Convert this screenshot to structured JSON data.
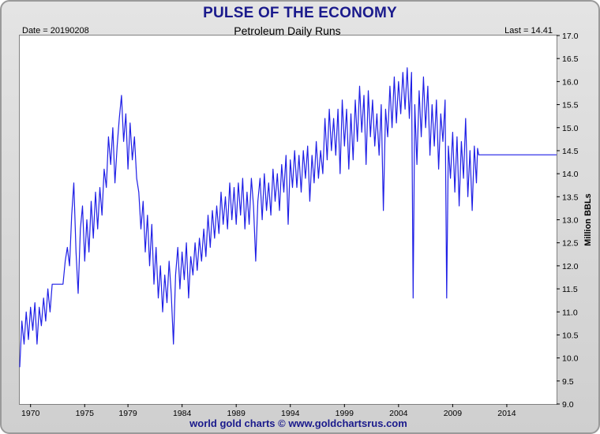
{
  "header": {
    "banner": "PULSE OF THE ECONOMY",
    "date_label": "Date = 20190208",
    "last_label": "Last = 14.41",
    "footer": "world gold charts © www.goldchartsrus.com"
  },
  "colors": {
    "line": "#1f1fe6",
    "banner_text": "#1a1a8c"
  },
  "chart_data": {
    "type": "line",
    "title": "Petroleum Daily Runs",
    "xlabel": "",
    "ylabel": "Million BBLs",
    "xlim": [
      1969.0,
      2018.6
    ],
    "ylim": [
      9.0,
      17.0
    ],
    "x_ticks": [
      1970,
      1975,
      1979,
      1984,
      1989,
      1994,
      1999,
      2004,
      2009,
      2014
    ],
    "y_ticks": [
      "9.0",
      "9.5",
      "10.0",
      "10.5",
      "11.0",
      "11.5",
      "12.0",
      "12.5",
      "13.0",
      "13.5",
      "14.0",
      "14.5",
      "15.0",
      "15.5",
      "16.0",
      "16.5",
      "17.0"
    ],
    "grid": false,
    "series": [
      {
        "name": "Petroleum Daily Runs",
        "points": [
          [
            1969.0,
            9.8
          ],
          [
            1969.2,
            10.8
          ],
          [
            1969.4,
            10.3
          ],
          [
            1969.6,
            11.0
          ],
          [
            1969.8,
            10.4
          ],
          [
            1970.0,
            11.1
          ],
          [
            1970.2,
            10.6
          ],
          [
            1970.4,
            11.2
          ],
          [
            1970.6,
            10.3
          ],
          [
            1970.8,
            11.1
          ],
          [
            1971.0,
            10.7
          ],
          [
            1971.2,
            11.3
          ],
          [
            1971.4,
            10.8
          ],
          [
            1971.6,
            11.5
          ],
          [
            1971.8,
            11.0
          ],
          [
            1972.0,
            11.6
          ],
          [
            1972.3,
            11.6
          ],
          [
            1972.6,
            11.6
          ],
          [
            1973.0,
            11.6
          ],
          [
            1973.2,
            12.1
          ],
          [
            1973.4,
            12.4
          ],
          [
            1973.6,
            12.0
          ],
          [
            1973.8,
            13.1
          ],
          [
            1974.0,
            13.8
          ],
          [
            1974.2,
            12.3
          ],
          [
            1974.4,
            11.4
          ],
          [
            1974.6,
            12.8
          ],
          [
            1974.8,
            13.3
          ],
          [
            1975.0,
            12.1
          ],
          [
            1975.2,
            13.0
          ],
          [
            1975.4,
            12.3
          ],
          [
            1975.6,
            13.4
          ],
          [
            1975.8,
            12.6
          ],
          [
            1976.0,
            13.6
          ],
          [
            1976.2,
            12.8
          ],
          [
            1976.4,
            13.7
          ],
          [
            1976.6,
            13.1
          ],
          [
            1976.8,
            14.1
          ],
          [
            1977.0,
            13.7
          ],
          [
            1977.2,
            14.8
          ],
          [
            1977.4,
            14.2
          ],
          [
            1977.6,
            15.0
          ],
          [
            1977.8,
            13.8
          ],
          [
            1978.0,
            14.6
          ],
          [
            1978.2,
            15.2
          ],
          [
            1978.4,
            15.7
          ],
          [
            1978.6,
            14.7
          ],
          [
            1978.8,
            15.3
          ],
          [
            1979.0,
            14.1
          ],
          [
            1979.2,
            15.1
          ],
          [
            1979.4,
            14.3
          ],
          [
            1979.6,
            14.8
          ],
          [
            1979.8,
            13.9
          ],
          [
            1980.0,
            13.6
          ],
          [
            1980.2,
            12.8
          ],
          [
            1980.4,
            13.4
          ],
          [
            1980.6,
            12.3
          ],
          [
            1980.8,
            13.1
          ],
          [
            1981.0,
            12.0
          ],
          [
            1981.2,
            12.9
          ],
          [
            1981.4,
            11.6
          ],
          [
            1981.6,
            12.4
          ],
          [
            1981.8,
            11.3
          ],
          [
            1982.0,
            12.0
          ],
          [
            1982.2,
            11.0
          ],
          [
            1982.4,
            11.8
          ],
          [
            1982.6,
            11.2
          ],
          [
            1982.8,
            12.1
          ],
          [
            1983.0,
            11.4
          ],
          [
            1983.2,
            10.3
          ],
          [
            1983.4,
            11.8
          ],
          [
            1983.6,
            12.4
          ],
          [
            1983.8,
            11.5
          ],
          [
            1984.0,
            12.3
          ],
          [
            1984.2,
            11.7
          ],
          [
            1984.4,
            12.5
          ],
          [
            1984.6,
            11.3
          ],
          [
            1984.8,
            12.2
          ],
          [
            1985.0,
            11.8
          ],
          [
            1985.2,
            12.5
          ],
          [
            1985.4,
            11.9
          ],
          [
            1985.6,
            12.6
          ],
          [
            1985.8,
            12.1
          ],
          [
            1986.0,
            12.8
          ],
          [
            1986.2,
            12.2
          ],
          [
            1986.4,
            13.1
          ],
          [
            1986.6,
            12.4
          ],
          [
            1986.8,
            13.2
          ],
          [
            1987.0,
            12.6
          ],
          [
            1987.2,
            13.3
          ],
          [
            1987.4,
            12.7
          ],
          [
            1987.6,
            13.6
          ],
          [
            1987.8,
            12.9
          ],
          [
            1988.0,
            13.5
          ],
          [
            1988.2,
            12.8
          ],
          [
            1988.4,
            13.8
          ],
          [
            1988.6,
            13.0
          ],
          [
            1988.8,
            13.7
          ],
          [
            1989.0,
            12.9
          ],
          [
            1989.2,
            13.8
          ],
          [
            1989.4,
            13.1
          ],
          [
            1989.6,
            13.9
          ],
          [
            1989.8,
            12.8
          ],
          [
            1990.0,
            13.6
          ],
          [
            1990.2,
            12.9
          ],
          [
            1990.4,
            13.9
          ],
          [
            1990.6,
            13.3
          ],
          [
            1990.8,
            12.1
          ],
          [
            1991.0,
            13.4
          ],
          [
            1991.2,
            13.9
          ],
          [
            1991.4,
            13.0
          ],
          [
            1991.6,
            14.0
          ],
          [
            1991.8,
            13.2
          ],
          [
            1992.0,
            13.8
          ],
          [
            1992.2,
            13.1
          ],
          [
            1992.4,
            14.1
          ],
          [
            1992.6,
            13.4
          ],
          [
            1992.8,
            14.0
          ],
          [
            1993.0,
            13.2
          ],
          [
            1993.2,
            14.2
          ],
          [
            1993.4,
            13.6
          ],
          [
            1993.6,
            14.4
          ],
          [
            1993.8,
            12.9
          ],
          [
            1994.0,
            14.3
          ],
          [
            1994.2,
            13.7
          ],
          [
            1994.4,
            14.5
          ],
          [
            1994.6,
            13.7
          ],
          [
            1994.8,
            14.4
          ],
          [
            1995.0,
            13.6
          ],
          [
            1995.2,
            14.5
          ],
          [
            1995.4,
            13.9
          ],
          [
            1995.6,
            14.6
          ],
          [
            1995.8,
            13.4
          ],
          [
            1996.0,
            14.4
          ],
          [
            1996.2,
            13.8
          ],
          [
            1996.4,
            14.7
          ],
          [
            1996.6,
            13.9
          ],
          [
            1996.8,
            14.5
          ],
          [
            1997.0,
            14.0
          ],
          [
            1997.2,
            15.2
          ],
          [
            1997.4,
            14.3
          ],
          [
            1997.6,
            15.4
          ],
          [
            1997.8,
            14.5
          ],
          [
            1998.0,
            15.2
          ],
          [
            1998.2,
            14.4
          ],
          [
            1998.4,
            15.4
          ],
          [
            1998.6,
            14.0
          ],
          [
            1998.8,
            15.6
          ],
          [
            1999.0,
            14.6
          ],
          [
            1999.2,
            15.4
          ],
          [
            1999.4,
            14.1
          ],
          [
            1999.6,
            15.3
          ],
          [
            1999.8,
            14.3
          ],
          [
            2000.0,
            15.6
          ],
          [
            2000.2,
            14.7
          ],
          [
            2000.4,
            15.9
          ],
          [
            2000.6,
            14.9
          ],
          [
            2000.8,
            15.7
          ],
          [
            2001.0,
            14.2
          ],
          [
            2001.2,
            15.8
          ],
          [
            2001.4,
            14.8
          ],
          [
            2001.6,
            15.6
          ],
          [
            2001.8,
            14.6
          ],
          [
            2002.0,
            15.3
          ],
          [
            2002.2,
            14.4
          ],
          [
            2002.4,
            15.5
          ],
          [
            2002.6,
            13.2
          ],
          [
            2002.8,
            15.4
          ],
          [
            2003.0,
            14.8
          ],
          [
            2003.2,
            15.9
          ],
          [
            2003.4,
            15.0
          ],
          [
            2003.6,
            16.1
          ],
          [
            2003.8,
            15.1
          ],
          [
            2004.0,
            16.0
          ],
          [
            2004.2,
            15.3
          ],
          [
            2004.4,
            16.2
          ],
          [
            2004.6,
            15.4
          ],
          [
            2004.8,
            16.3
          ],
          [
            2005.0,
            15.2
          ],
          [
            2005.2,
            16.2
          ],
          [
            2005.35,
            11.3
          ],
          [
            2005.5,
            15.5
          ],
          [
            2005.7,
            14.2
          ],
          [
            2005.9,
            15.8
          ],
          [
            2006.1,
            14.8
          ],
          [
            2006.3,
            16.1
          ],
          [
            2006.5,
            15.0
          ],
          [
            2006.7,
            15.9
          ],
          [
            2006.9,
            14.4
          ],
          [
            2007.1,
            15.5
          ],
          [
            2007.3,
            14.6
          ],
          [
            2007.5,
            15.6
          ],
          [
            2007.7,
            14.1
          ],
          [
            2007.9,
            15.3
          ],
          [
            2008.1,
            14.7
          ],
          [
            2008.3,
            15.6
          ],
          [
            2008.45,
            11.3
          ],
          [
            2008.6,
            14.6
          ],
          [
            2008.8,
            13.9
          ],
          [
            2009.0,
            14.9
          ],
          [
            2009.2,
            13.6
          ],
          [
            2009.4,
            14.8
          ],
          [
            2009.6,
            13.3
          ],
          [
            2009.8,
            14.7
          ],
          [
            2010.0,
            13.9
          ],
          [
            2010.2,
            15.2
          ],
          [
            2010.4,
            13.5
          ],
          [
            2010.6,
            14.5
          ],
          [
            2010.8,
            13.2
          ],
          [
            2011.0,
            14.6
          ],
          [
            2011.2,
            13.8
          ],
          [
            2011.3,
            14.55
          ],
          [
            2011.4,
            14.41
          ],
          [
            2018.6,
            14.41
          ]
        ]
      }
    ]
  }
}
